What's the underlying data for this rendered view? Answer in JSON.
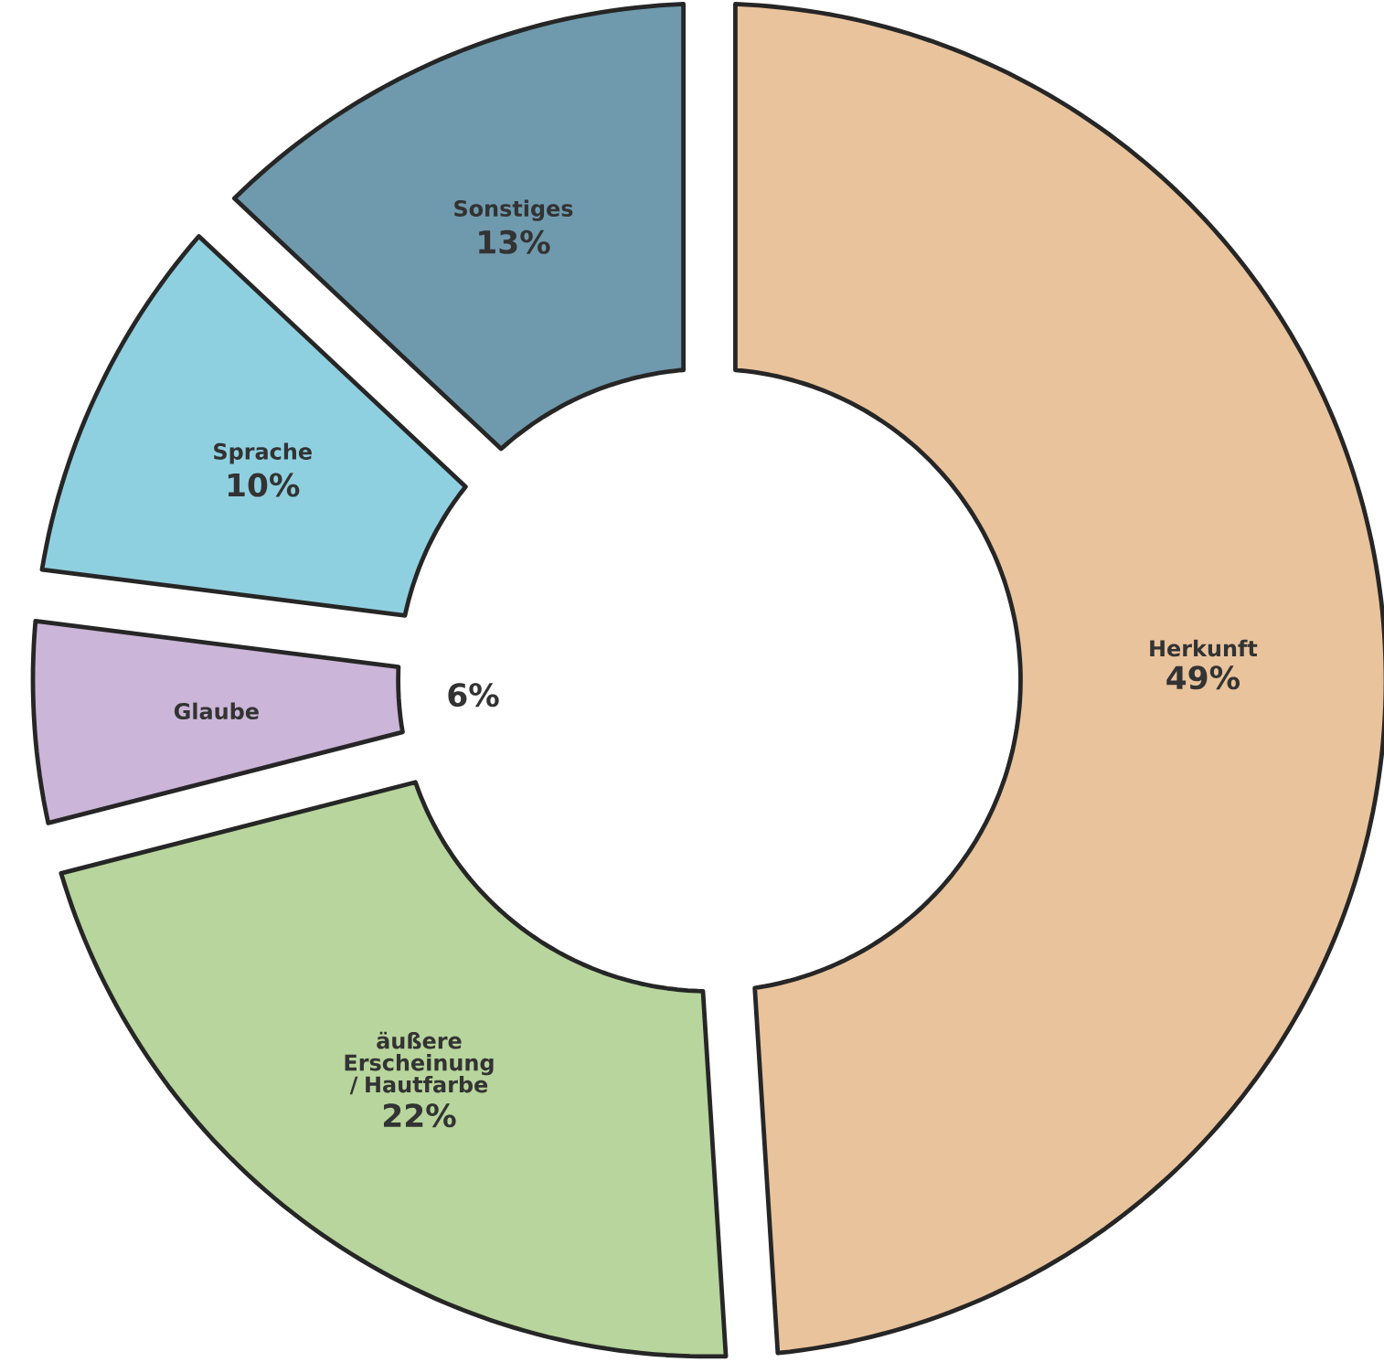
{
  "chart_data": {
    "type": "donut",
    "categories": [
      "Herkunft",
      "äußere Erscheinung / Hautfarbe",
      "Glaube",
      "Sprache",
      "Sonstiges"
    ],
    "values": [
      49,
      22,
      6,
      10,
      13
    ],
    "value_labels": [
      "49%",
      "22%",
      "6%",
      "10%",
      "13%"
    ],
    "colors": [
      "#e9c39c",
      "#b7d59c",
      "#cbb5d8",
      "#8fd0e0",
      "#6f9aae"
    ]
  }
}
